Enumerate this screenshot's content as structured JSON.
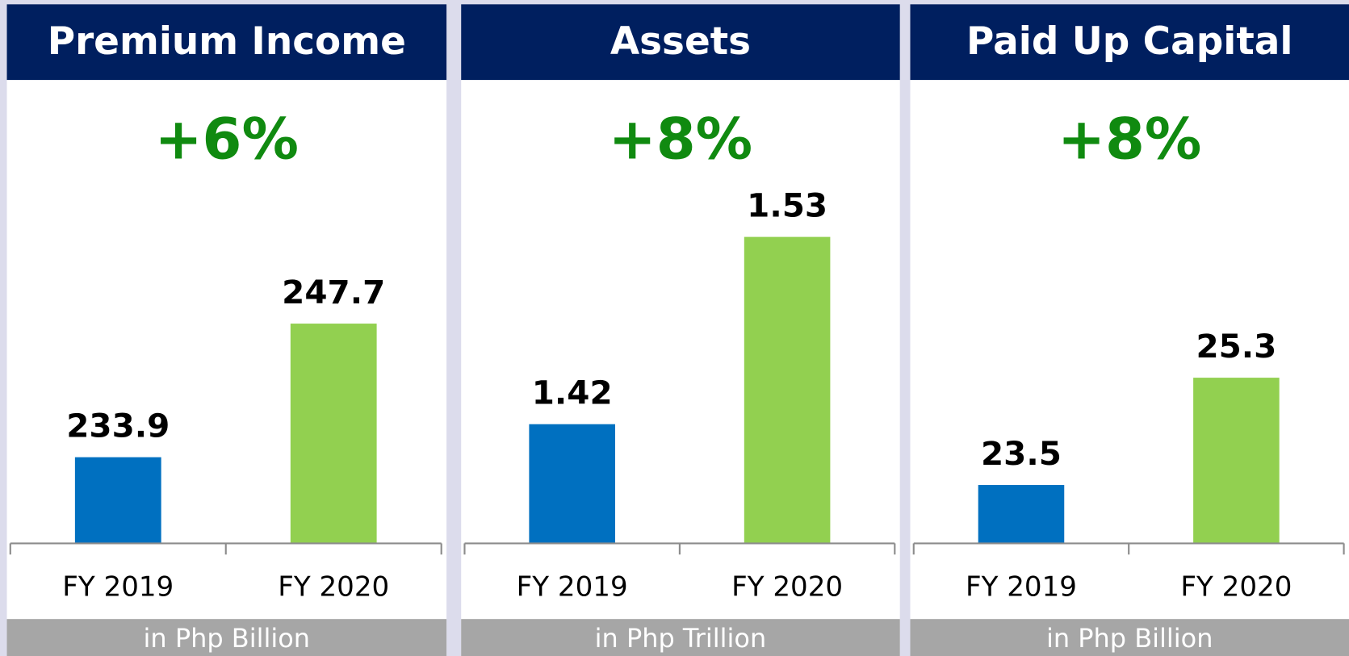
{
  "chart_data": [
    {
      "type": "bar",
      "title": "Premium Income",
      "annotation": "+6%",
      "categories": [
        "FY 2019",
        "FY 2020"
      ],
      "values": [
        233.9,
        247.7
      ],
      "colors": [
        "#0070c0",
        "#92d050"
      ],
      "ylim": [
        225,
        260.7
      ],
      "footnote": "in Php Billion"
    },
    {
      "type": "bar",
      "title": "Assets",
      "annotation": "+8%",
      "categories": [
        "FY 2019",
        "FY 2020"
      ],
      "values": [
        1.42,
        1.53
      ],
      "colors": [
        "#0070c0",
        "#92d050"
      ],
      "ylim": [
        1.35,
        1.553
      ],
      "footnote": "in Php Trillion"
    },
    {
      "type": "bar",
      "title": "Paid Up Capital",
      "annotation": "+8%",
      "categories": [
        "FY 2019",
        "FY 2020"
      ],
      "values": [
        23.5,
        25.3
      ],
      "colors": [
        "#0070c0",
        "#92d050"
      ],
      "ylim": [
        22.52,
        28.32
      ],
      "footnote": "in Php Billion"
    }
  ]
}
